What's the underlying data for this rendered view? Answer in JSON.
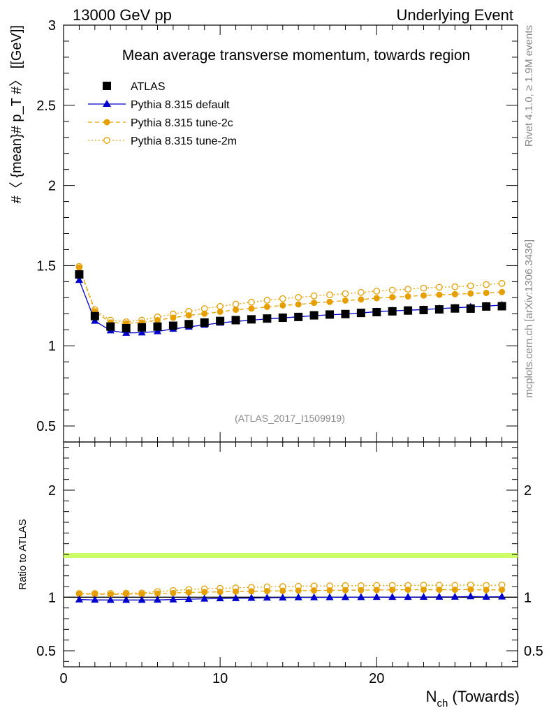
{
  "header": {
    "left_label": "13000 GeV pp",
    "right_label": "Underlying Event"
  },
  "side_labels": {
    "rivet": "Rivet 4.1.0, ≥ 1.9M events",
    "mcplots": "mcplots.cern.ch [arXiv:1306.3436]"
  },
  "colors": {
    "atlas": "#000000",
    "default": "#0000cc",
    "tune2c": "#e69f00",
    "tune2m": "#e69f00",
    "ratio_band": "#ccff66"
  },
  "chart_data": [
    {
      "type": "line",
      "title": "Mean average transverse momentum, towards region",
      "ylabel": "#〈 {mean}# p_T #〉 [[GeV]]",
      "xlabel": "N_ch (Towards)",
      "xlim": [
        0,
        29
      ],
      "ylim": [
        0.4,
        3.0
      ],
      "yticks": [
        0.5,
        1,
        1.5,
        2,
        2.5,
        3
      ],
      "yticklabels": [
        "0.5",
        "1",
        "1.5",
        "2",
        "2.5",
        "3"
      ],
      "watermark": "(ATLAS_2017_I1509919)",
      "x": [
        1,
        2,
        3,
        4,
        5,
        6,
        7,
        8,
        9,
        10,
        11,
        12,
        13,
        14,
        15,
        16,
        17,
        18,
        19,
        20,
        21,
        22,
        23,
        24,
        25,
        26,
        27,
        28
      ],
      "series": [
        {
          "name": "ATLAS",
          "marker": "square",
          "values": [
            1.445,
            1.185,
            1.12,
            1.11,
            1.115,
            1.12,
            1.125,
            1.135,
            1.145,
            1.155,
            1.16,
            1.165,
            1.17,
            1.175,
            1.18,
            1.19,
            1.195,
            1.198,
            1.205,
            1.21,
            1.215,
            1.22,
            1.223,
            1.227,
            1.233,
            1.232,
            1.245,
            1.247
          ]
        },
        {
          "name": "Pythia 8.315 default",
          "marker": "triangle",
          "values": [
            1.41,
            1.155,
            1.095,
            1.08,
            1.082,
            1.09,
            1.105,
            1.118,
            1.13,
            1.143,
            1.152,
            1.16,
            1.168,
            1.174,
            1.181,
            1.188,
            1.193,
            1.198,
            1.205,
            1.213,
            1.218,
            1.222,
            1.226,
            1.232,
            1.237,
            1.242,
            1.248,
            1.254
          ]
        },
        {
          "name": "Pythia 8.315 tune-2c",
          "marker": "circle-filled",
          "values": [
            1.488,
            1.215,
            1.145,
            1.14,
            1.145,
            1.16,
            1.175,
            1.19,
            1.2,
            1.212,
            1.225,
            1.232,
            1.243,
            1.252,
            1.258,
            1.268,
            1.274,
            1.282,
            1.289,
            1.297,
            1.303,
            1.308,
            1.314,
            1.318,
            1.322,
            1.326,
            1.33,
            1.335
          ]
        },
        {
          "name": "Pythia 8.315 tune-2m",
          "marker": "circle-open",
          "values": [
            1.495,
            1.225,
            1.16,
            1.15,
            1.16,
            1.18,
            1.198,
            1.215,
            1.232,
            1.246,
            1.26,
            1.272,
            1.284,
            1.294,
            1.302,
            1.311,
            1.318,
            1.325,
            1.333,
            1.341,
            1.347,
            1.353,
            1.36,
            1.365,
            1.368,
            1.374,
            1.382,
            1.389
          ]
        }
      ]
    },
    {
      "type": "line",
      "title": "",
      "ylabel": "Ratio to ATLAS",
      "xlabel": "N_ch (Towards)",
      "xlim": [
        0,
        29
      ],
      "ylim": [
        0.35,
        2.45
      ],
      "yticks": [
        0.5,
        1,
        2
      ],
      "yticklabels": [
        "0.5",
        "1",
        "2"
      ],
      "xticks": [
        0,
        10,
        20
      ],
      "xticklabels": [
        "0",
        "10",
        "20"
      ],
      "x": [
        1,
        2,
        3,
        4,
        5,
        6,
        7,
        8,
        9,
        10,
        11,
        12,
        13,
        14,
        15,
        16,
        17,
        18,
        19,
        20,
        21,
        22,
        23,
        24,
        25,
        26,
        27,
        28
      ],
      "series": [
        {
          "name": "Pythia 8.315 default",
          "marker": "triangle",
          "values": [
            0.978,
            0.975,
            0.974,
            0.974,
            0.974,
            0.975,
            0.978,
            0.982,
            0.985,
            0.988,
            0.99,
            0.992,
            0.995,
            0.996,
            0.998,
            0.998,
            0.999,
            1.0,
            1.0,
            1.001,
            1.001,
            1.001,
            1.002,
            1.003,
            1.003,
            1.007,
            1.003,
            1.005
          ]
        },
        {
          "name": "Pythia 8.315 tune-2c",
          "marker": "circle-filled",
          "values": [
            1.03,
            1.03,
            1.025,
            1.03,
            1.03,
            1.035,
            1.04,
            1.045,
            1.048,
            1.05,
            1.053,
            1.055,
            1.058,
            1.06,
            1.062,
            1.063,
            1.064,
            1.066,
            1.066,
            1.068,
            1.069,
            1.07,
            1.07,
            1.07,
            1.07,
            1.072,
            1.068,
            1.07
          ]
        },
        {
          "name": "Pythia 8.315 tune-2m",
          "marker": "circle-open",
          "values": [
            1.035,
            1.035,
            1.035,
            1.038,
            1.04,
            1.053,
            1.063,
            1.072,
            1.078,
            1.083,
            1.087,
            1.092,
            1.097,
            1.1,
            1.103,
            1.105,
            1.106,
            1.108,
            1.108,
            1.11,
            1.11,
            1.11,
            1.112,
            1.112,
            1.111,
            1.115,
            1.11,
            1.114
          ]
        }
      ]
    }
  ]
}
